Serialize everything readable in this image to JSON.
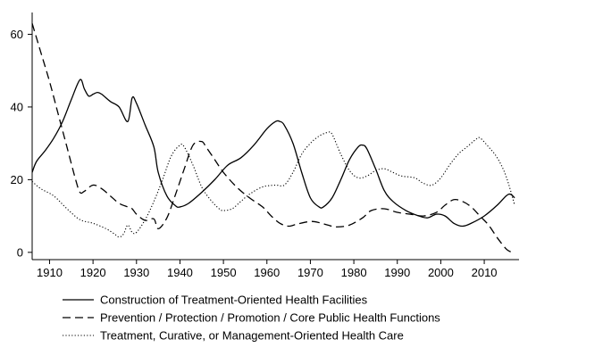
{
  "chart_data": {
    "type": "line",
    "title": "",
    "xlabel": "",
    "ylabel": "",
    "xlim": [
      1906,
      2018
    ],
    "ylim": [
      -2,
      66
    ],
    "x_ticks": [
      1910,
      1920,
      1930,
      1940,
      1950,
      1960,
      1970,
      1980,
      1990,
      2000,
      2010
    ],
    "y_ticks": [
      0,
      20,
      40,
      60
    ],
    "grid": false,
    "legend_position": "bottom",
    "series": [
      {
        "name": "Construction of Treatment-Oriented Health Facilities",
        "style": "solid",
        "color": "#000000",
        "points": [
          [
            1906,
            22
          ],
          [
            1907,
            25
          ],
          [
            1909,
            28
          ],
          [
            1911,
            31.5
          ],
          [
            1913,
            36
          ],
          [
            1915,
            42
          ],
          [
            1917,
            47.5
          ],
          [
            1918,
            45
          ],
          [
            1919,
            43
          ],
          [
            1920,
            43.5
          ],
          [
            1921,
            44
          ],
          [
            1922,
            43.5
          ],
          [
            1924,
            41.5
          ],
          [
            1926,
            40
          ],
          [
            1928,
            36
          ],
          [
            1929,
            42.5
          ],
          [
            1930,
            41
          ],
          [
            1932,
            35
          ],
          [
            1934,
            29
          ],
          [
            1935,
            22
          ],
          [
            1937,
            15.5
          ],
          [
            1939,
            12.8
          ],
          [
            1940,
            12.5
          ],
          [
            1942,
            13.5
          ],
          [
            1945,
            16.5
          ],
          [
            1948,
            20
          ],
          [
            1951,
            24
          ],
          [
            1954,
            26
          ],
          [
            1957,
            29.5
          ],
          [
            1960,
            34
          ],
          [
            1962,
            36
          ],
          [
            1963,
            36
          ],
          [
            1964,
            35
          ],
          [
            1966,
            30
          ],
          [
            1968,
            22
          ],
          [
            1970,
            15
          ],
          [
            1972,
            12.5
          ],
          [
            1973,
            12.5
          ],
          [
            1975,
            15
          ],
          [
            1977,
            20
          ],
          [
            1979,
            25.5
          ],
          [
            1981,
            29
          ],
          [
            1982,
            29.5
          ],
          [
            1983,
            28.5
          ],
          [
            1985,
            23
          ],
          [
            1987,
            17
          ],
          [
            1989,
            14
          ],
          [
            1992,
            11.5
          ],
          [
            1995,
            10
          ],
          [
            1997,
            9.5
          ],
          [
            1999,
            10.5
          ],
          [
            2001,
            10
          ],
          [
            2003,
            8
          ],
          [
            2005,
            7.2
          ],
          [
            2007,
            8
          ],
          [
            2010,
            10
          ],
          [
            2013,
            13
          ],
          [
            2015,
            15.5
          ],
          [
            2016,
            16
          ],
          [
            2017,
            15
          ]
        ]
      },
      {
        "name": "Prevention / Protection / Promotion / Core Public Health Functions",
        "style": "dashed",
        "color": "#000000",
        "points": [
          [
            1906,
            63
          ],
          [
            1908,
            55
          ],
          [
            1910,
            47
          ],
          [
            1912,
            38
          ],
          [
            1914,
            29
          ],
          [
            1916,
            20
          ],
          [
            1917,
            16.5
          ],
          [
            1918,
            16.8
          ],
          [
            1920,
            18.5
          ],
          [
            1922,
            17.5
          ],
          [
            1924,
            15.5
          ],
          [
            1926,
            13.5
          ],
          [
            1928,
            12.5
          ],
          [
            1929,
            12
          ],
          [
            1930,
            10.5
          ],
          [
            1932,
            8.8
          ],
          [
            1934,
            9.2
          ],
          [
            1935,
            6.5
          ],
          [
            1937,
            9.5
          ],
          [
            1939,
            16
          ],
          [
            1941,
            23
          ],
          [
            1943,
            29.5
          ],
          [
            1945,
            30.5
          ],
          [
            1946,
            29
          ],
          [
            1948,
            25.5
          ],
          [
            1950,
            22
          ],
          [
            1953,
            18
          ],
          [
            1956,
            15
          ],
          [
            1959,
            12.5
          ],
          [
            1961,
            10
          ],
          [
            1963,
            8
          ],
          [
            1965,
            7.2
          ],
          [
            1967,
            7.8
          ],
          [
            1970,
            8.5
          ],
          [
            1972,
            8.2
          ],
          [
            1974,
            7.5
          ],
          [
            1976,
            7
          ],
          [
            1979,
            7.5
          ],
          [
            1982,
            9.5
          ],
          [
            1984,
            11.5
          ],
          [
            1987,
            12
          ],
          [
            1990,
            11
          ],
          [
            1993,
            10.5
          ],
          [
            1996,
            10
          ],
          [
            1999,
            11
          ],
          [
            2001,
            13
          ],
          [
            2003,
            14.5
          ],
          [
            2005,
            14
          ],
          [
            2007,
            12.5
          ],
          [
            2009,
            10
          ],
          [
            2011,
            7.5
          ],
          [
            2013,
            4
          ],
          [
            2015,
            1
          ],
          [
            2016,
            0.2
          ],
          [
            2017,
            0
          ]
        ]
      },
      {
        "name": "Treatment, Curative, or Management-Oriented Health Care",
        "style": "dotted",
        "color": "#000000",
        "points": [
          [
            1906,
            19.5
          ],
          [
            1908,
            17.5
          ],
          [
            1911,
            15.5
          ],
          [
            1914,
            12
          ],
          [
            1917,
            9
          ],
          [
            1920,
            8
          ],
          [
            1923,
            6.5
          ],
          [
            1925,
            5
          ],
          [
            1926,
            4.2
          ],
          [
            1927,
            5
          ],
          [
            1928,
            7.5
          ],
          [
            1929,
            5.5
          ],
          [
            1930,
            5.5
          ],
          [
            1932,
            9
          ],
          [
            1934,
            14
          ],
          [
            1936,
            20
          ],
          [
            1938,
            26.5
          ],
          [
            1940,
            29.5
          ],
          [
            1941,
            29
          ],
          [
            1943,
            24
          ],
          [
            1945,
            18
          ],
          [
            1947,
            14.5
          ],
          [
            1949,
            12
          ],
          [
            1950,
            11.5
          ],
          [
            1952,
            12
          ],
          [
            1954,
            14
          ],
          [
            1956,
            16
          ],
          [
            1959,
            18
          ],
          [
            1962,
            18.5
          ],
          [
            1964,
            18.5
          ],
          [
            1966,
            22
          ],
          [
            1968,
            27
          ],
          [
            1970,
            30
          ],
          [
            1972,
            32
          ],
          [
            1974,
            33
          ],
          [
            1975,
            32.5
          ],
          [
            1977,
            27
          ],
          [
            1979,
            22.5
          ],
          [
            1981,
            20.5
          ],
          [
            1983,
            21
          ],
          [
            1985,
            22.5
          ],
          [
            1987,
            23
          ],
          [
            1989,
            22
          ],
          [
            1991,
            21
          ],
          [
            1994,
            20.5
          ],
          [
            1996,
            19
          ],
          [
            1998,
            18.5
          ],
          [
            2000,
            20.5
          ],
          [
            2002,
            24
          ],
          [
            2004,
            27
          ],
          [
            2006,
            29
          ],
          [
            2008,
            31
          ],
          [
            2009,
            31.5
          ],
          [
            2011,
            29
          ],
          [
            2013,
            26
          ],
          [
            2015,
            21
          ],
          [
            2017,
            13
          ]
        ]
      }
    ]
  }
}
